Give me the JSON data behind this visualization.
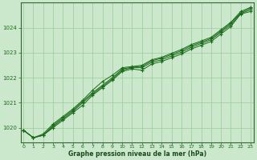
{
  "x": [
    0,
    1,
    2,
    3,
    4,
    5,
    6,
    7,
    8,
    9,
    10,
    11,
    12,
    13,
    14,
    15,
    16,
    17,
    18,
    19,
    20,
    21,
    22,
    23
  ],
  "line1": [
    1019.9,
    1019.6,
    1019.7,
    1020.0,
    1020.3,
    1020.6,
    1020.9,
    1021.3,
    1021.6,
    1021.9,
    1022.25,
    1022.35,
    1022.3,
    1022.55,
    1022.65,
    1022.8,
    1022.95,
    1023.15,
    1023.3,
    1023.45,
    1023.75,
    1024.05,
    1024.55,
    1024.65
  ],
  "line2": [
    1019.9,
    1019.6,
    1019.7,
    1020.05,
    1020.35,
    1020.65,
    1021.0,
    1021.35,
    1021.65,
    1021.95,
    1022.3,
    1022.4,
    1022.4,
    1022.62,
    1022.72,
    1022.87,
    1023.02,
    1023.22,
    1023.37,
    1023.52,
    1023.82,
    1024.12,
    1024.57,
    1024.72
  ],
  "line3": [
    1019.9,
    1019.6,
    1019.7,
    1020.1,
    1020.4,
    1020.7,
    1021.05,
    1021.4,
    1021.7,
    1022.0,
    1022.35,
    1022.42,
    1022.45,
    1022.68,
    1022.78,
    1022.93,
    1023.08,
    1023.28,
    1023.42,
    1023.57,
    1023.87,
    1024.18,
    1024.6,
    1024.78
  ],
  "line4": [
    1019.9,
    1019.6,
    1019.75,
    1020.15,
    1020.45,
    1020.75,
    1021.1,
    1021.5,
    1021.85,
    1022.1,
    1022.4,
    1022.45,
    1022.5,
    1022.72,
    1022.82,
    1022.98,
    1023.13,
    1023.33,
    1023.47,
    1023.62,
    1023.92,
    1024.22,
    1024.65,
    1024.82
  ],
  "bg_color": "#cce8cc",
  "line_color": "#1a6b1a",
  "grid_color": "#99cc99",
  "xlabel": "Graphe pression niveau de la mer (hPa)",
  "ylim": [
    1019.4,
    1025.0
  ],
  "yticks": [
    1020,
    1021,
    1022,
    1023,
    1024
  ],
  "xticks": [
    0,
    1,
    2,
    3,
    4,
    5,
    6,
    7,
    8,
    9,
    10,
    11,
    12,
    13,
    14,
    15,
    16,
    17,
    18,
    19,
    20,
    21,
    22,
    23
  ]
}
